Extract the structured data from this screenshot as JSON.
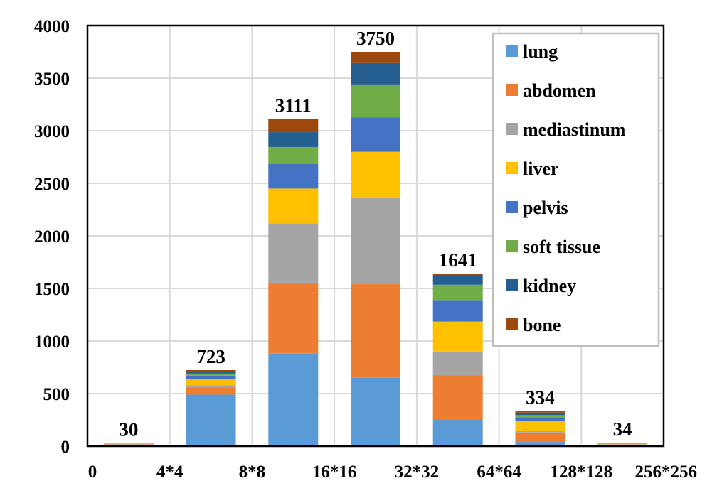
{
  "chart_data": {
    "type": "bar",
    "stacked": true,
    "title": "",
    "xlabel": "",
    "ylabel": "",
    "ylim": [
      0,
      4000
    ],
    "y_ticks": [
      0,
      500,
      1000,
      1500,
      2000,
      2500,
      3000,
      3500,
      4000
    ],
    "x_tick_labels": [
      "0",
      "4*4",
      "8*8",
      "16*16",
      "32*32",
      "64*64",
      "128*128",
      "256*256"
    ],
    "categories": [
      "0–4*4",
      "4*4–8*8",
      "8*8–16*16",
      "16*16–32*32",
      "32*32–64*64",
      "64*64–128*128",
      "128*128–256*256"
    ],
    "totals": [
      30,
      723,
      3111,
      3750,
      1641,
      334,
      34
    ],
    "grid": true,
    "legend_position": "top-right",
    "series": [
      {
        "name": "lung",
        "color": "#5B9BD5",
        "values": [
          15,
          490,
          880,
          650,
          250,
          40,
          10
        ]
      },
      {
        "name": "abdomen",
        "color": "#ED7D31",
        "values": [
          3,
          70,
          675,
          890,
          425,
          90,
          5
        ]
      },
      {
        "name": "mediastinum",
        "color": "#A5A5A5",
        "values": [
          2,
          20,
          565,
          820,
          225,
          15,
          3
        ]
      },
      {
        "name": "liver",
        "color": "#FFC000",
        "values": [
          7,
          60,
          330,
          440,
          285,
          95,
          5
        ]
      },
      {
        "name": "pelvis",
        "color": "#4472C4",
        "values": [
          1,
          30,
          235,
          325,
          205,
          35,
          3
        ]
      },
      {
        "name": "soft tissue",
        "color": "#70AD47",
        "values": [
          1,
          20,
          160,
          315,
          145,
          20,
          3
        ]
      },
      {
        "name": "kidney",
        "color": "#255E91",
        "values": [
          1,
          18,
          141,
          210,
          90,
          24,
          3
        ]
      },
      {
        "name": "bone",
        "color": "#9E480E",
        "values": [
          0,
          15,
          125,
          100,
          16,
          15,
          2
        ]
      }
    ]
  }
}
